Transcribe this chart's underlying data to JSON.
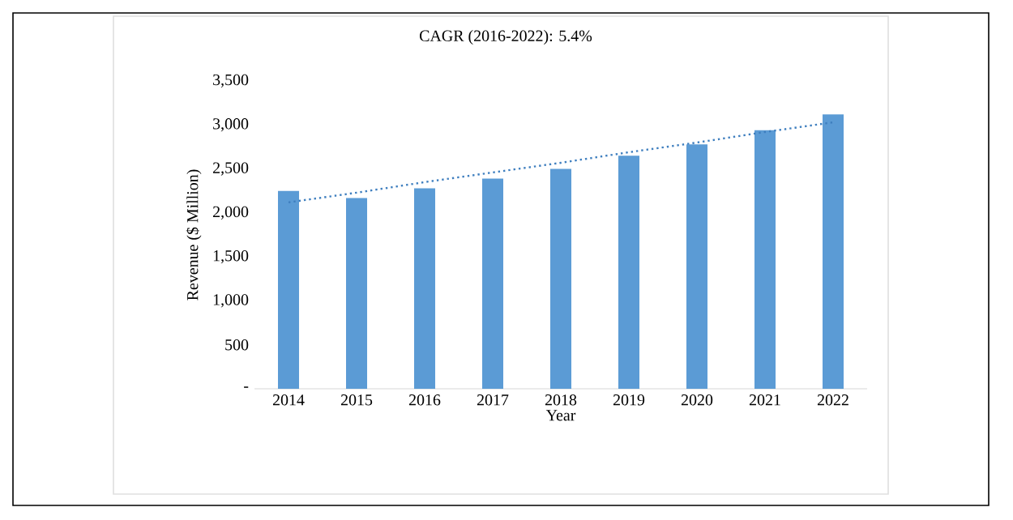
{
  "chart_data": {
    "type": "bar",
    "title": "CAGR (2016-2022):  5.4%",
    "xlabel": "Year",
    "ylabel": "Revenue ($ Million)",
    "categories": [
      "2014",
      "2015",
      "2016",
      "2017",
      "2018",
      "2019",
      "2020",
      "2021",
      "2022"
    ],
    "series": [
      {
        "color": "#5b9bd5",
        "values": [
          2250,
          2170,
          2280,
          2390,
          2500,
          2650,
          2780,
          2940,
          3120
        ]
      },
      {
        "type": "line",
        "color": "#3f7fbf",
        "line_style": "dotted",
        "values": [
          2120,
          2230,
          2350,
          2460,
          2570,
          2690,
          2800,
          2920,
          3030
        ]
      }
    ],
    "ylim": [
      0,
      3500
    ],
    "yticks": [
      {
        "value": 0,
        "label": "-"
      },
      500,
      {
        "value": 1000,
        "label": "1,000"
      },
      {
        "value": 1500,
        "label": "1,500"
      },
      {
        "value": 2000,
        "label": "2,000"
      },
      {
        "value": 2500,
        "label": "2,500"
      },
      {
        "value": 3000,
        "label": "3,000"
      },
      {
        "value": 3500,
        "label": "3,500"
      }
    ],
    "grid": false
  }
}
